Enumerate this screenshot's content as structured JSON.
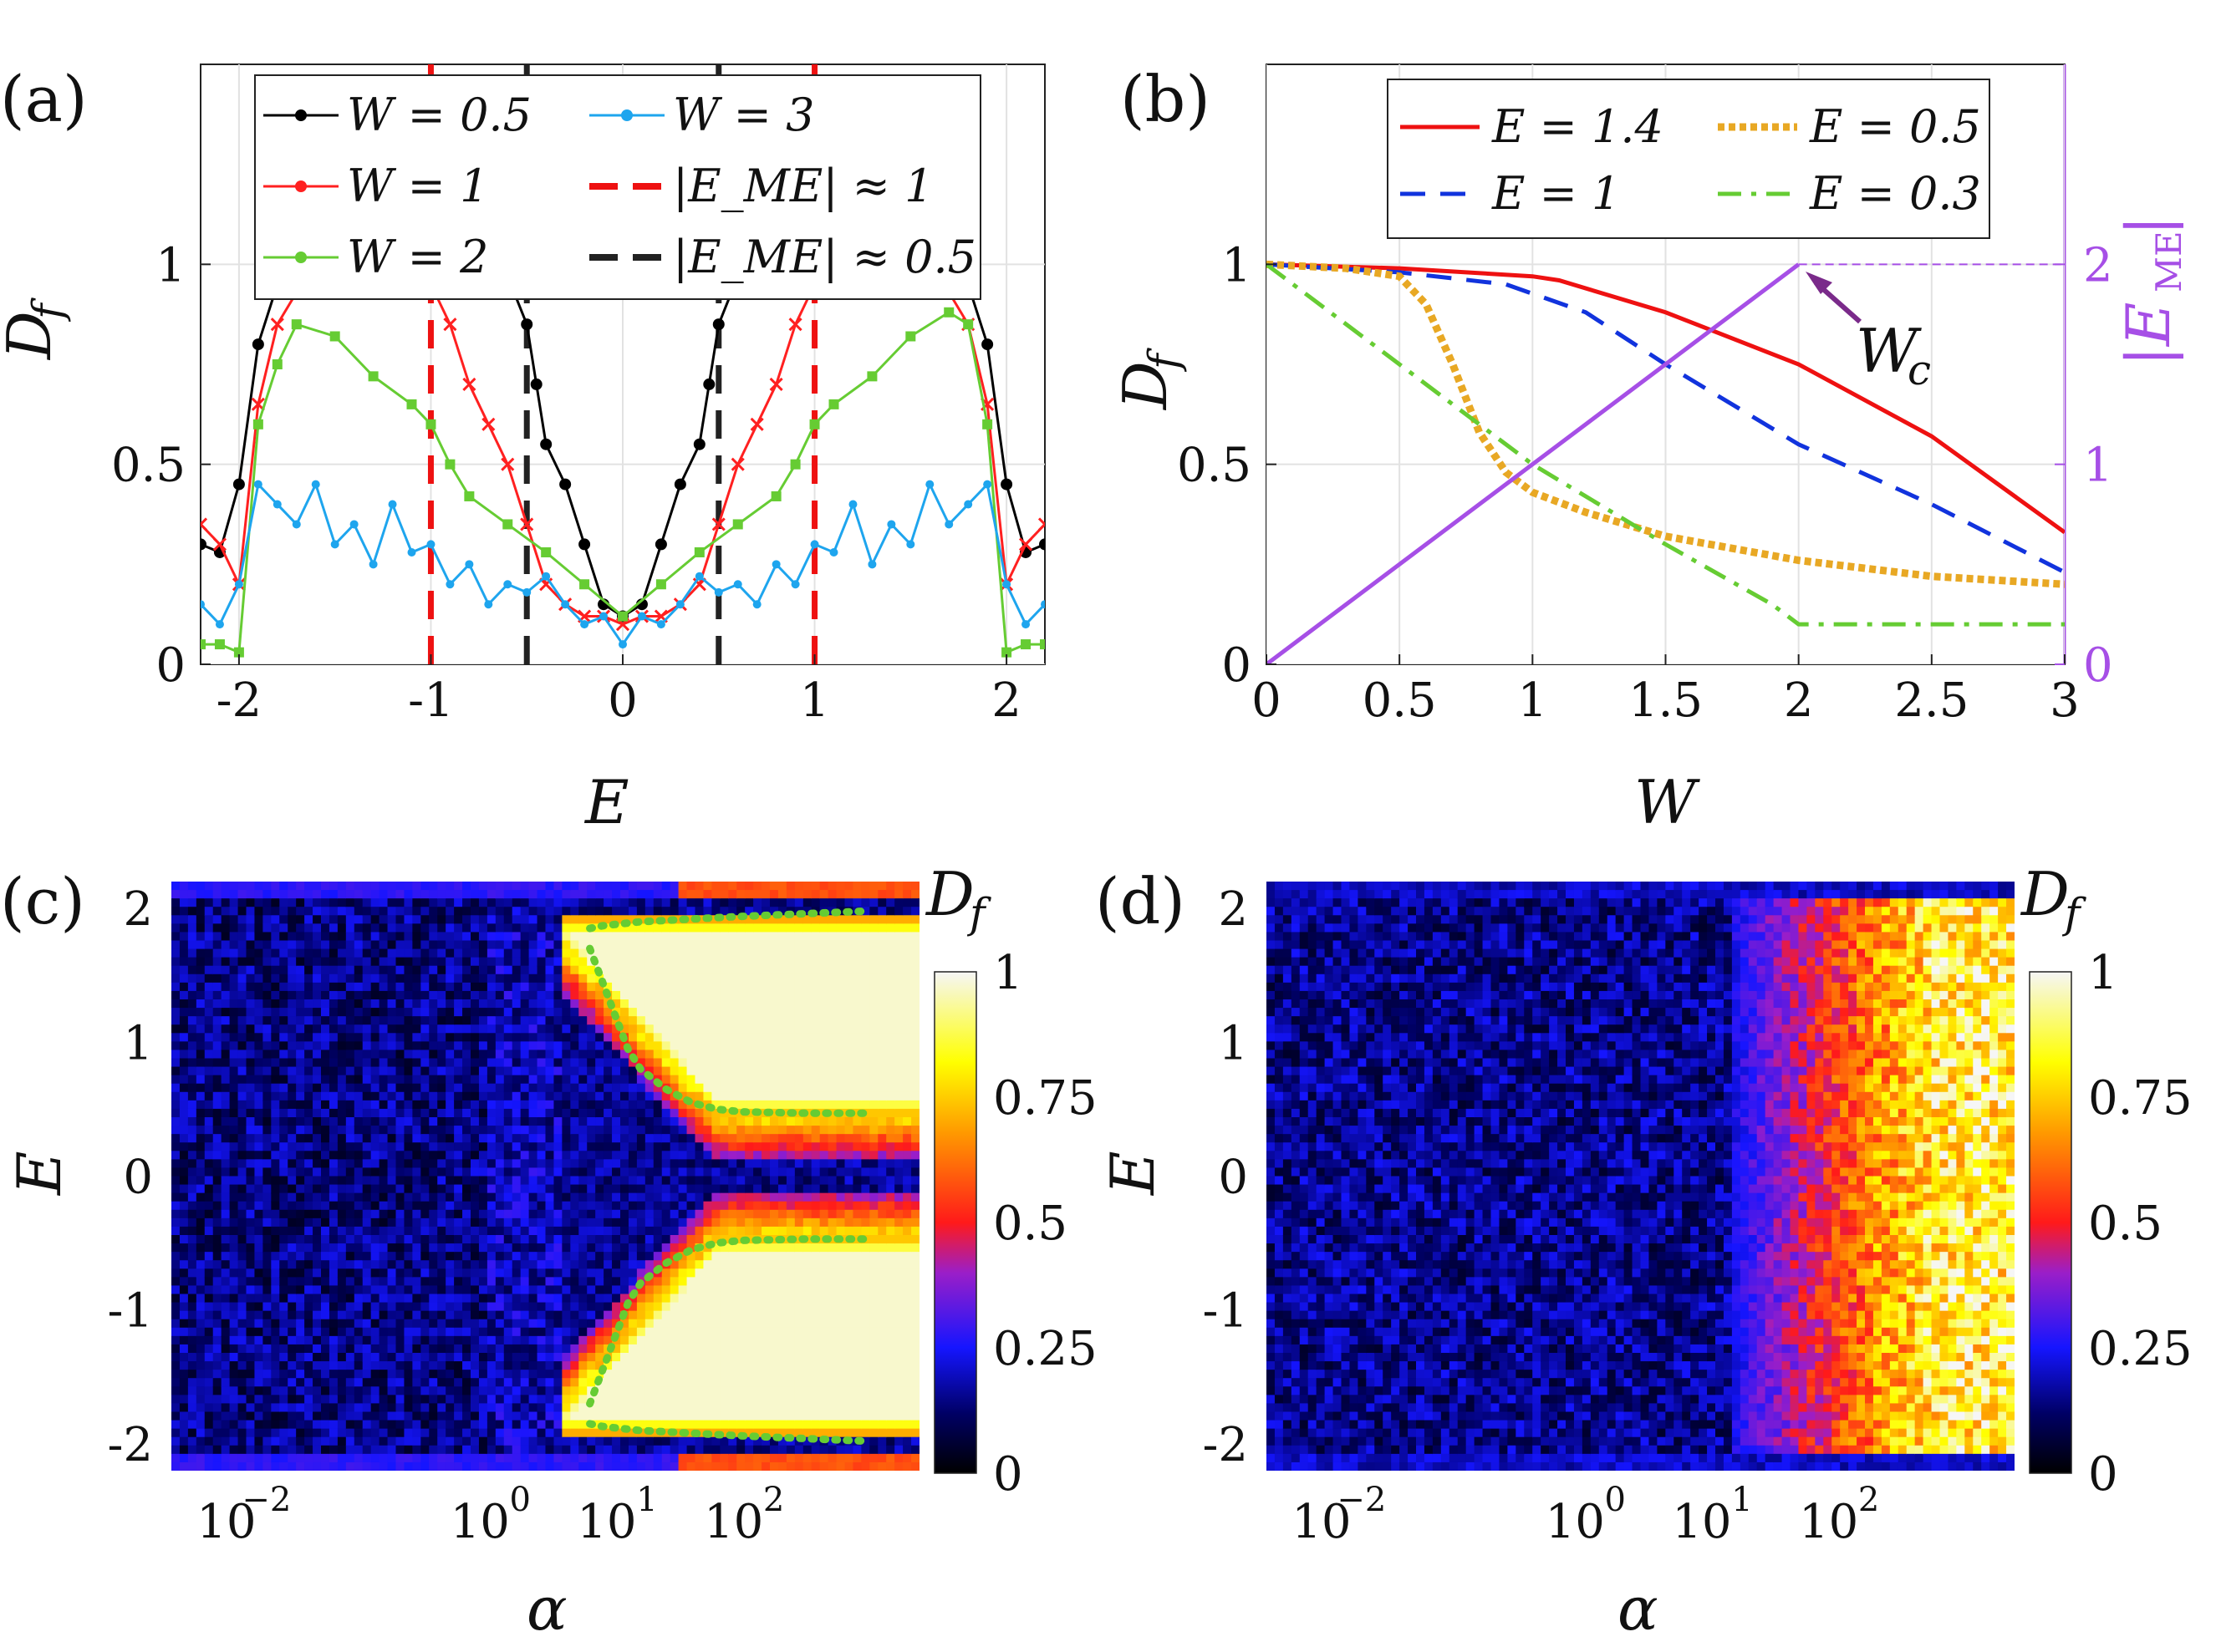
{
  "chart_data": [
    {
      "panel": "(a)",
      "type": "line",
      "xlabel": "E",
      "ylabel": "D_f",
      "xlim": [
        -2.2,
        2.2
      ],
      "ylim": [
        0,
        1.5
      ],
      "xticks": [
        -2,
        -1,
        0,
        1,
        2
      ],
      "yticks": [
        0,
        0.5,
        1
      ],
      "xtick_labels": [
        "-2",
        "-1",
        "0",
        "1",
        "2"
      ],
      "ytick_labels": [
        "0",
        "0.5",
        "1"
      ],
      "grid": true,
      "legend_position": "top",
      "series": [
        {
          "name": "W = 0.5",
          "color": "#000000",
          "marker": "*",
          "x": [
            -2.2,
            -2.1,
            -2.0,
            -1.9,
            -1.8,
            -1.7,
            -1.5,
            -1.2,
            -0.9,
            -0.7,
            -0.6,
            -0.5,
            -0.45,
            -0.4,
            -0.3,
            -0.2,
            -0.1,
            0,
            0.1,
            0.2,
            0.3,
            0.4,
            0.45,
            0.5,
            0.6,
            0.7,
            0.9,
            1.2,
            1.5,
            1.7,
            1.8,
            1.9,
            2.0,
            2.1,
            2.2
          ],
          "y": [
            0.3,
            0.28,
            0.45,
            0.8,
            0.95,
            1.0,
            1.0,
            1.0,
            1.0,
            0.99,
            0.97,
            0.85,
            0.7,
            0.55,
            0.45,
            0.3,
            0.15,
            0.12,
            0.15,
            0.3,
            0.45,
            0.55,
            0.7,
            0.85,
            0.97,
            0.99,
            1.0,
            1.0,
            1.0,
            1.0,
            0.95,
            0.8,
            0.45,
            0.28,
            0.3
          ]
        },
        {
          "name": "W = 1",
          "color": "#ff2020",
          "marker": "x",
          "x": [
            -2.2,
            -2.1,
            -2.0,
            -1.9,
            -1.8,
            -1.7,
            -1.5,
            -1.3,
            -1.1,
            -1.0,
            -0.9,
            -0.8,
            -0.7,
            -0.6,
            -0.5,
            -0.4,
            -0.3,
            -0.2,
            -0.1,
            0,
            0.1,
            0.2,
            0.3,
            0.4,
            0.5,
            0.6,
            0.7,
            0.8,
            0.9,
            1.0,
            1.1,
            1.3,
            1.5,
            1.7,
            1.8,
            1.9,
            2.0,
            2.1,
            2.2
          ],
          "y": [
            0.35,
            0.3,
            0.2,
            0.65,
            0.85,
            0.93,
            0.98,
            1.0,
            1.0,
            0.95,
            0.85,
            0.7,
            0.6,
            0.5,
            0.35,
            0.2,
            0.15,
            0.12,
            0.12,
            0.1,
            0.12,
            0.12,
            0.15,
            0.2,
            0.35,
            0.5,
            0.6,
            0.7,
            0.85,
            0.95,
            1.0,
            1.0,
            0.98,
            0.93,
            0.85,
            0.65,
            0.2,
            0.3,
            0.35
          ]
        },
        {
          "name": "W = 2",
          "color": "#66cc33",
          "marker": "s",
          "x": [
            -2.2,
            -2.1,
            -2.0,
            -1.9,
            -1.8,
            -1.7,
            -1.5,
            -1.3,
            -1.1,
            -1.0,
            -0.9,
            -0.8,
            -0.6,
            -0.4,
            -0.2,
            0,
            0.2,
            0.4,
            0.6,
            0.8,
            0.9,
            1.0,
            1.1,
            1.3,
            1.5,
            1.7,
            1.8,
            1.9,
            2.0,
            2.1,
            2.2
          ],
          "y": [
            0.05,
            0.05,
            0.03,
            0.6,
            0.75,
            0.85,
            0.82,
            0.72,
            0.65,
            0.6,
            0.5,
            0.42,
            0.35,
            0.28,
            0.2,
            0.12,
            0.2,
            0.28,
            0.35,
            0.42,
            0.5,
            0.6,
            0.65,
            0.72,
            0.82,
            0.88,
            0.85,
            0.6,
            0.03,
            0.05,
            0.05
          ]
        },
        {
          "name": "W = 3",
          "color": "#1ea5ee",
          "marker": ".",
          "x": [
            -2.2,
            -2.1,
            -2.0,
            -1.9,
            -1.8,
            -1.7,
            -1.6,
            -1.5,
            -1.4,
            -1.3,
            -1.2,
            -1.1,
            -1.0,
            -0.9,
            -0.8,
            -0.7,
            -0.6,
            -0.5,
            -0.4,
            -0.3,
            -0.2,
            -0.1,
            0,
            0.1,
            0.2,
            0.3,
            0.4,
            0.5,
            0.6,
            0.7,
            0.8,
            0.9,
            1.0,
            1.1,
            1.2,
            1.3,
            1.4,
            1.5,
            1.6,
            1.7,
            1.8,
            1.9,
            2.0,
            2.1,
            2.2
          ],
          "y": [
            0.15,
            0.1,
            0.2,
            0.45,
            0.4,
            0.35,
            0.45,
            0.3,
            0.35,
            0.25,
            0.4,
            0.28,
            0.3,
            0.2,
            0.25,
            0.15,
            0.2,
            0.18,
            0.22,
            0.15,
            0.1,
            0.12,
            0.05,
            0.12,
            0.1,
            0.15,
            0.22,
            0.18,
            0.2,
            0.15,
            0.25,
            0.2,
            0.3,
            0.28,
            0.4,
            0.25,
            0.35,
            0.3,
            0.45,
            0.35,
            0.4,
            0.45,
            0.2,
            0.1,
            0.15
          ]
        }
      ],
      "vlines": [
        {
          "name": "|E_ME| ≈ 1",
          "color": "#ee1111",
          "style": "dashed",
          "x": [
            -1,
            1
          ]
        },
        {
          "name": "|E_ME| ≈ 0.5",
          "color": "#222222",
          "style": "dashed",
          "x": [
            -0.5,
            0.5
          ]
        }
      ]
    },
    {
      "panel": "(b)",
      "type": "line",
      "xlabel": "W",
      "ylabel": "D_f",
      "y2label": "|E_ME|",
      "xlim": [
        0,
        3
      ],
      "ylim": [
        0,
        1.5
      ],
      "y2lim": [
        0,
        3
      ],
      "xticks": [
        0,
        0.5,
        1,
        1.5,
        2,
        2.5,
        3
      ],
      "xtick_labels": [
        "0",
        "0.5",
        "1",
        "1.5",
        "2",
        "2.5",
        "3"
      ],
      "yticks": [
        0,
        0.5,
        1
      ],
      "ytick_labels": [
        "0",
        "0.5",
        "1"
      ],
      "y2ticks": [
        0,
        1,
        2
      ],
      "y2tick_labels": [
        "0",
        "1",
        "2"
      ],
      "grid": true,
      "legend_position": "top",
      "annotation": "W_c",
      "series": [
        {
          "name": "E = 1.4",
          "color": "#ee1111",
          "style": "solid",
          "x": [
            0,
            0.5,
            1,
            1.1,
            1.5,
            2,
            2.5,
            3
          ],
          "y": [
            1,
            0.99,
            0.97,
            0.96,
            0.88,
            0.75,
            0.57,
            0.33
          ]
        },
        {
          "name": "E = 1",
          "color": "#1133dd",
          "style": "dashed",
          "x": [
            0,
            0.5,
            0.9,
            1.2,
            1.5,
            2,
            2.5,
            3
          ],
          "y": [
            1,
            0.98,
            0.95,
            0.88,
            0.75,
            0.55,
            0.4,
            0.23
          ]
        },
        {
          "name": "E = 0.5",
          "color": "#e8a824",
          "style": "dotted",
          "x": [
            0,
            0.3,
            0.5,
            0.6,
            0.7,
            0.8,
            0.9,
            1,
            1.2,
            1.5,
            2,
            2.5,
            3
          ],
          "y": [
            1,
            0.99,
            0.97,
            0.9,
            0.75,
            0.58,
            0.48,
            0.43,
            0.38,
            0.32,
            0.26,
            0.22,
            0.2
          ]
        },
        {
          "name": "E = 0.3",
          "color": "#66cc33",
          "style": "dashdot",
          "x": [
            0,
            0.5,
            1,
            1.5,
            1.9,
            2,
            2.5,
            3
          ],
          "y": [
            1,
            0.75,
            0.5,
            0.3,
            0.15,
            0.1,
            0.1,
            0.1
          ]
        },
        {
          "name": "|E_ME|",
          "color": "#a64fe6",
          "style": "solid",
          "axis": "right",
          "x": [
            0,
            2
          ],
          "y": [
            0,
            2
          ]
        }
      ]
    },
    {
      "panel": "(c)",
      "type": "heatmap",
      "xlabel": "α",
      "ylabel": "E",
      "colorbar_label": "D_f",
      "xscale": "log",
      "xticks": [
        -2,
        0,
        1,
        2
      ],
      "xtick_labels": [
        "10",
        "10",
        "10",
        "10"
      ],
      "xtick_exponents": [
        "−2",
        "0",
        "1",
        "2"
      ],
      "yticks": [
        2,
        1,
        0,
        -1,
        -2
      ],
      "ytick_labels": [
        "2",
        "1",
        "0",
        "-1",
        "-2"
      ],
      "colorbar_ticks": [
        "1",
        "0.75",
        "0.5",
        "0.25",
        "0"
      ],
      "mobility_edge": {
        "color": "#66cc33",
        "log_alpha": [
          0.8,
          0.9,
          1.0,
          1.1,
          1.2,
          1.4,
          1.6,
          1.8,
          2.0,
          2.5,
          3.0
        ],
        "E_upper_outer": [
          1.85,
          1.87,
          1.88,
          1.89,
          1.9,
          1.91,
          1.92,
          1.93,
          1.94,
          1.96,
          1.98
        ],
        "E_upper_inner": [
          1.7,
          1.45,
          1.2,
          0.95,
          0.8,
          0.65,
          0.55,
          0.5,
          0.48,
          0.47,
          0.47
        ]
      }
    },
    {
      "panel": "(d)",
      "type": "heatmap",
      "xlabel": "α",
      "ylabel": "E",
      "colorbar_label": "D_f",
      "xscale": "log",
      "xticks": [
        -2,
        0,
        1,
        2
      ],
      "xtick_labels": [
        "10",
        "10",
        "10",
        "10"
      ],
      "xtick_exponents": [
        "−2",
        "0",
        "1",
        "2"
      ],
      "yticks": [
        2,
        1,
        0,
        -1,
        -2
      ],
      "ytick_labels": [
        "2",
        "1",
        "0",
        "-1",
        "-2"
      ],
      "colorbar_ticks": [
        "1",
        "0.75",
        "0.5",
        "0.25",
        "0"
      ]
    }
  ],
  "panels": {
    "a": {
      "label": "(a)",
      "xlabel": "E",
      "ylabel": "D",
      "ylabel_sub": "f",
      "legend": [
        "W = 0.5",
        "W = 3",
        "W = 1",
        "|E_ME| ≈ 1",
        "W = 2",
        "|E_ME| ≈ 0.5"
      ]
    },
    "b": {
      "label": "(b)",
      "xlabel": "W",
      "ylabel": "D",
      "ylabel_sub": "f",
      "legend": [
        "E = 1.4",
        "E = 0.5",
        "E = 1",
        "E = 0.3"
      ],
      "annotation": "W",
      "annotation_sub": "c"
    },
    "c": {
      "label": "(c)",
      "xlabel": "α",
      "ylabel": "E",
      "cbar": "D",
      "cbar_sub": "f"
    },
    "d": {
      "label": "(d)",
      "xlabel": "α",
      "ylabel": "E",
      "cbar": "D",
      "cbar_sub": "f"
    }
  }
}
